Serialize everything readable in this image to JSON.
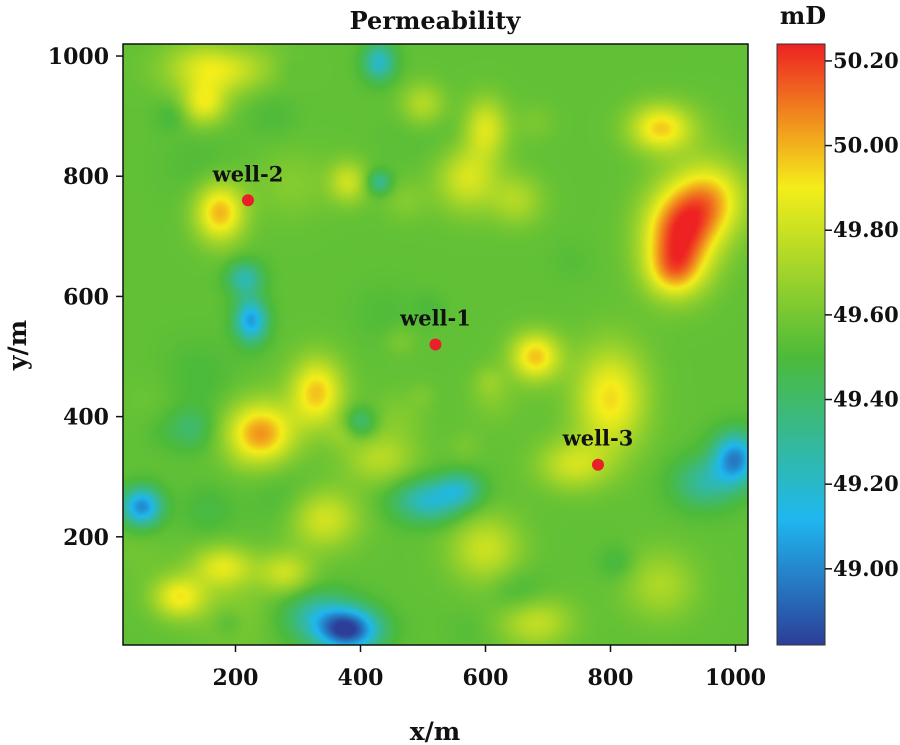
{
  "chart_data": {
    "type": "heatmap",
    "title": "Permeability",
    "xlabel": "x/m",
    "ylabel": "y/m",
    "xlim": [
      20,
      1020
    ],
    "ylim": [
      20,
      1020
    ],
    "x_ticks": [
      200,
      400,
      600,
      800,
      1000
    ],
    "x_tick_labels": [
      "200",
      "400",
      "600",
      "800",
      "1000"
    ],
    "y_ticks": [
      200,
      400,
      600,
      800,
      1000
    ],
    "y_tick_labels": [
      "200",
      "400",
      "600",
      "800",
      "1000"
    ],
    "colorbar": {
      "unit_label": "mD",
      "range": [
        48.82,
        50.24
      ],
      "ticks": [
        49.0,
        49.2,
        49.4,
        49.6,
        49.8,
        50.0,
        50.2
      ],
      "tick_labels": [
        "49.00",
        "49.20",
        "49.40",
        "49.60",
        "49.80",
        "50.00",
        "50.20"
      ],
      "colormap": [
        "#2c3e98",
        "#1fb8ef",
        "#4cba3a",
        "#f4ee1a",
        "#ee2222"
      ],
      "colormap_stops": [
        48.82,
        49.12,
        49.5,
        49.9,
        50.24
      ]
    },
    "background_value": 49.55,
    "features": [
      {
        "x": 910,
        "y": 700,
        "sx": 40,
        "sy": 55,
        "amp": 0.62
      },
      {
        "x": 960,
        "y": 760,
        "sx": 40,
        "sy": 45,
        "amp": 0.4
      },
      {
        "x": 900,
        "y": 640,
        "sx": 30,
        "sy": 30,
        "amp": 0.25
      },
      {
        "x": 880,
        "y": 880,
        "sx": 35,
        "sy": 28,
        "amp": 0.4
      },
      {
        "x": 600,
        "y": 880,
        "sx": 25,
        "sy": 35,
        "amp": 0.3
      },
      {
        "x": 570,
        "y": 800,
        "sx": 35,
        "sy": 40,
        "amp": 0.3
      },
      {
        "x": 175,
        "y": 740,
        "sx": 28,
        "sy": 35,
        "amp": 0.45
      },
      {
        "x": 150,
        "y": 920,
        "sx": 25,
        "sy": 25,
        "amp": 0.3
      },
      {
        "x": 170,
        "y": 980,
        "sx": 55,
        "sy": 30,
        "amp": 0.35
      },
      {
        "x": 380,
        "y": 790,
        "sx": 22,
        "sy": 25,
        "amp": 0.25
      },
      {
        "x": 500,
        "y": 920,
        "sx": 25,
        "sy": 25,
        "amp": 0.2
      },
      {
        "x": 330,
        "y": 440,
        "sx": 30,
        "sy": 40,
        "amp": 0.42
      },
      {
        "x": 240,
        "y": 370,
        "sx": 38,
        "sy": 35,
        "amp": 0.48
      },
      {
        "x": 680,
        "y": 500,
        "sx": 28,
        "sy": 28,
        "amp": 0.42
      },
      {
        "x": 800,
        "y": 430,
        "sx": 40,
        "sy": 60,
        "amp": 0.38
      },
      {
        "x": 740,
        "y": 320,
        "sx": 40,
        "sy": 30,
        "amp": 0.25
      },
      {
        "x": 430,
        "y": 330,
        "sx": 40,
        "sy": 30,
        "amp": 0.2
      },
      {
        "x": 110,
        "y": 100,
        "sx": 30,
        "sy": 25,
        "amp": 0.35
      },
      {
        "x": 180,
        "y": 150,
        "sx": 35,
        "sy": 25,
        "amp": 0.3
      },
      {
        "x": 340,
        "y": 230,
        "sx": 40,
        "sy": 35,
        "amp": 0.28
      },
      {
        "x": 600,
        "y": 180,
        "sx": 40,
        "sy": 40,
        "amp": 0.25
      },
      {
        "x": 680,
        "y": 60,
        "sx": 40,
        "sy": 30,
        "amp": 0.25
      },
      {
        "x": 280,
        "y": 140,
        "sx": 30,
        "sy": 25,
        "amp": 0.25
      },
      {
        "x": 880,
        "y": 120,
        "sx": 40,
        "sy": 40,
        "amp": 0.18
      },
      {
        "x": 650,
        "y": 760,
        "sx": 30,
        "sy": 30,
        "amp": 0.18
      },
      {
        "x": 380,
        "y": 45,
        "sx": 35,
        "sy": 25,
        "amp": -0.7
      },
      {
        "x": 330,
        "y": 70,
        "sx": 40,
        "sy": 30,
        "amp": -0.25
      },
      {
        "x": 510,
        "y": 260,
        "sx": 40,
        "sy": 25,
        "amp": -0.35
      },
      {
        "x": 560,
        "y": 280,
        "sx": 25,
        "sy": 20,
        "amp": -0.25
      },
      {
        "x": 50,
        "y": 250,
        "sx": 22,
        "sy": 22,
        "amp": -0.55
      },
      {
        "x": 1000,
        "y": 330,
        "sx": 25,
        "sy": 30,
        "amp": -0.55
      },
      {
        "x": 950,
        "y": 290,
        "sx": 35,
        "sy": 30,
        "amp": -0.25
      },
      {
        "x": 225,
        "y": 560,
        "sx": 18,
        "sy": 25,
        "amp": -0.5
      },
      {
        "x": 215,
        "y": 630,
        "sx": 20,
        "sy": 20,
        "amp": -0.3
      },
      {
        "x": 430,
        "y": 990,
        "sx": 18,
        "sy": 22,
        "amp": -0.35
      },
      {
        "x": 430,
        "y": 790,
        "sx": 14,
        "sy": 14,
        "amp": -0.25
      },
      {
        "x": 400,
        "y": 390,
        "sx": 18,
        "sy": 18,
        "amp": -0.2
      },
      {
        "x": 130,
        "y": 380,
        "sx": 25,
        "sy": 25,
        "amp": -0.15
      }
    ],
    "wells": [
      {
        "label": "well-1",
        "x": 520,
        "y": 520
      },
      {
        "label": "well-2",
        "x": 220,
        "y": 760
      },
      {
        "label": "well-3",
        "x": 780,
        "y": 320
      }
    ],
    "well_marker_color": "#e8202a"
  }
}
